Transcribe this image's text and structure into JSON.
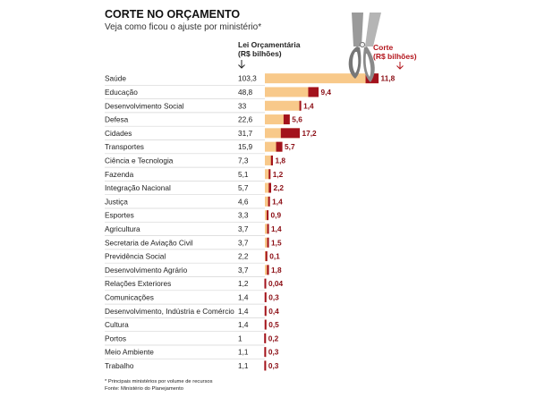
{
  "chart_data": {
    "type": "bar",
    "title": "CORTE NO ORÇAMENTO",
    "subtitle": "Veja como ficou o ajuste por ministério*",
    "column_budget_label": [
      "Lei Orçamentária",
      "(R$ bilhões)"
    ],
    "column_cut_label": [
      "Corte",
      "(R$ bilhões)"
    ],
    "series": [
      {
        "name": "Lei Orçamentária (R$ bilhões)",
        "color": "#f8c98a"
      },
      {
        "name": "Corte (R$ bilhões)",
        "color": "#a3121c"
      }
    ],
    "categories": [
      "Saúde",
      "Educação",
      "Desenvolvimento Social",
      "Defesa",
      "Cidades",
      "Transportes",
      "Ciência e Tecnologia",
      "Fazenda",
      "Integração Nacional",
      "Justiça",
      "Esportes",
      "Agricultura",
      "Secretaria de Aviação Civil",
      "Previdência Social",
      "Desenvolvimento Agrário",
      "Relações Exteriores",
      "Comunicações",
      "Desenvolvimento, Indústria e Comércio",
      "Cultura",
      "Portos",
      "Meio Ambiente",
      "Trabalho"
    ],
    "budget_labels": [
      "103,3",
      "48,8",
      "33",
      "22,6",
      "31,7",
      "15,9",
      "7,3",
      "5,1",
      "5,7",
      "4,6",
      "3,3",
      "3,7",
      "3,7",
      "2,2",
      "3,7",
      "1,2",
      "1,4",
      "1,4",
      "1,4",
      "1",
      "1,1",
      "1,1"
    ],
    "cut_labels": [
      "11,8",
      "9,4",
      "1,4",
      "5,6",
      "17,2",
      "5,7",
      "1,8",
      "1,2",
      "2,2",
      "1,4",
      "0,9",
      "1,4",
      "1,5",
      "0,1",
      "1,8",
      "0,04",
      "0,3",
      "0,4",
      "0,5",
      "0,2",
      "0,3",
      "0,3"
    ],
    "budget_values": [
      103.3,
      48.8,
      33,
      22.6,
      31.7,
      15.9,
      7.3,
      5.1,
      5.7,
      4.6,
      3.3,
      3.7,
      3.7,
      2.2,
      3.7,
      1.2,
      1.4,
      1.4,
      1.4,
      1,
      1.1,
      1.1
    ],
    "cut_values": [
      11.8,
      9.4,
      1.4,
      5.6,
      17.2,
      5.7,
      1.8,
      1.2,
      2.2,
      1.4,
      0.9,
      1.4,
      1.5,
      0.1,
      1.8,
      0.04,
      0.3,
      0.4,
      0.5,
      0.2,
      0.3,
      0.3
    ],
    "footnote": "* Principais ministérios por volume de recursos",
    "source": "Fonte: Ministério do Planejamento"
  },
  "colors": {
    "budget": "#f8c98a",
    "cut": "#a3121c",
    "cut_text": "#8b0d14",
    "row_line": "#d5d5d5",
    "red_label": "#b3141b"
  },
  "icons": {
    "decoration": "scissors-icon"
  }
}
